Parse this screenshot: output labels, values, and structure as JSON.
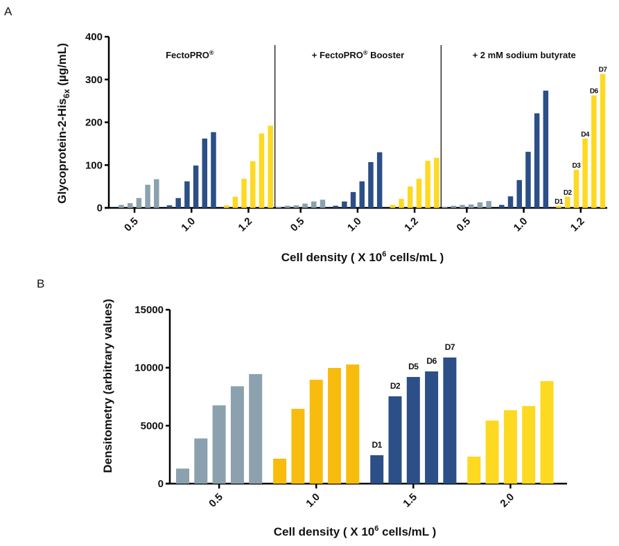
{
  "chart_data": [
    {
      "panel": "A",
      "type": "bar",
      "ylabel": "Glycoprotein-2-His6x (µg/mL)",
      "ylabel_main": "Glycoprotein-2-His",
      "ylabel_sub": "6x",
      "ylabel_unit": " (µg/mL)",
      "xlabel": "Cell density ( X 10^6 cells/mL )",
      "xlabel_pre": "Cell density ( X 10",
      "xlabel_sup": "6",
      "xlabel_post": " cells/mL )",
      "ylim": [
        0,
        400
      ],
      "yticks": [
        0,
        100,
        200,
        300,
        400
      ],
      "ytick_labels": [
        "0",
        "100",
        "200",
        "300",
        "400"
      ],
      "bar_labels": [
        "D1",
        "D2",
        "D3",
        "D4",
        "D6",
        "D7"
      ],
      "groups": [
        {
          "title": "FectoPRO",
          "title_sup": "®",
          "categories": [
            "0.5",
            "1.0",
            "1.2"
          ],
          "series": [
            {
              "category": "0.5",
              "color": "#8BA1AE",
              "values": [
                0,
                7,
                11,
                23,
                54,
                67
              ]
            },
            {
              "category": "1.0",
              "color": "#2B4F86",
              "values": [
                6,
                23,
                62,
                99,
                162,
                177
              ]
            },
            {
              "category": "1.2",
              "color": "#FDD921",
              "values": [
                6,
                26,
                68,
                109,
                174,
                192
              ]
            }
          ]
        },
        {
          "title": "+ FectoPRO",
          "title_sup": "®",
          "title_post": " Booster",
          "categories": [
            "0.5",
            "1.0",
            "1.2"
          ],
          "series": [
            {
              "category": "0.5",
              "color": "#8BA1AE",
              "values": [
                2,
                5,
                6,
                10,
                15,
                19
              ]
            },
            {
              "category": "1.0",
              "color": "#2B4F86",
              "values": [
                5,
                15,
                37,
                62,
                107,
                130
              ]
            },
            {
              "category": "1.2",
              "color": "#FDD921",
              "values": [
                7,
                21,
                50,
                68,
                110,
                117
              ]
            }
          ]
        },
        {
          "title": "+ 2 mM sodium butyrate",
          "categories": [
            "0.5",
            "1.0",
            "1.2"
          ],
          "labeled_series": 2,
          "series": [
            {
              "category": "0.5",
              "color": "#8BA1AE",
              "values": [
                2,
                5,
                7,
                8,
                13,
                16
              ]
            },
            {
              "category": "1.0",
              "color": "#2B4F86",
              "values": [
                7,
                27,
                65,
                131,
                221,
                274
              ]
            },
            {
              "category": "1.2",
              "color": "#FDD921",
              "values": [
                5,
                26,
                89,
                162,
                263,
                313
              ]
            }
          ]
        }
      ]
    },
    {
      "panel": "B",
      "type": "bar",
      "ylabel": "Densitometry (arbitrary values)",
      "xlabel": "Cell density ( X 10^6 cells/mL )",
      "xlabel_pre": "Cell density ( X 10",
      "xlabel_sup": "6",
      "xlabel_post": " cells/mL )",
      "ylim": [
        0,
        15000
      ],
      "yticks": [
        0,
        5000,
        10000,
        15000
      ],
      "ytick_labels": [
        "0",
        "5000",
        "10000",
        "15000"
      ],
      "categories": [
        "0.5",
        "1.0",
        "1.5",
        "2.0"
      ],
      "bar_labels": [
        "D1",
        "D2",
        "D5",
        "D6",
        "D7"
      ],
      "labeled_series": 2,
      "series": [
        {
          "category": "0.5",
          "color": "#8BA1AE",
          "values": [
            1300,
            3900,
            6750,
            8400,
            9450
          ]
        },
        {
          "category": "1.0",
          "color": "#F8BC0E",
          "values": [
            2150,
            6450,
            8960,
            9980,
            10280
          ]
        },
        {
          "category": "1.5",
          "color": "#2B4F86",
          "values": [
            2450,
            7530,
            9200,
            9680,
            10880
          ]
        },
        {
          "category": "2.0",
          "color": "#FDD921",
          "values": [
            2330,
            5440,
            6330,
            6690,
            8840
          ]
        }
      ]
    }
  ],
  "panel_letters": [
    "A",
    "B"
  ]
}
